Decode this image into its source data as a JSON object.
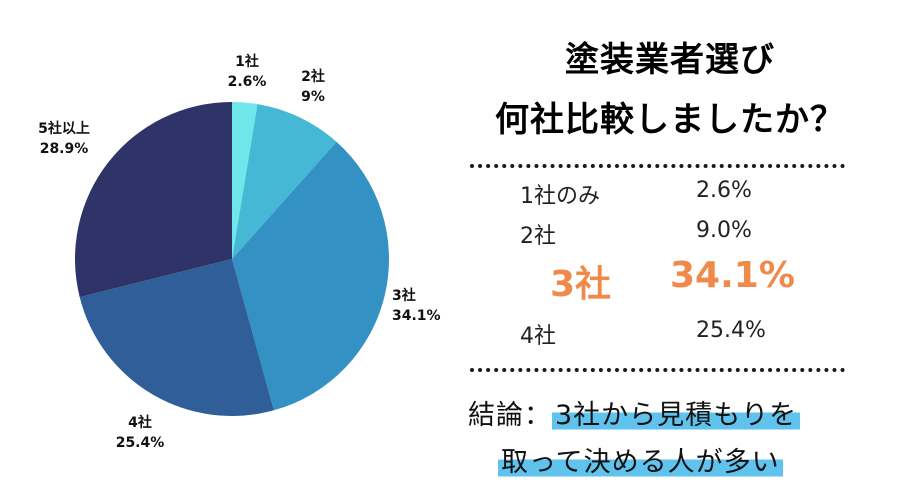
{
  "chart_data": {
    "type": "pie",
    "categories": [
      "1社",
      "2社",
      "3社",
      "4社",
      "5社以上"
    ],
    "values": [
      2.6,
      9.0,
      34.1,
      25.4,
      28.9
    ],
    "slice_labels": [
      {
        "name": "1社",
        "value": "2.6%"
      },
      {
        "name": "2社",
        "value": "9%"
      },
      {
        "name": "3社",
        "value": "34.1%"
      },
      {
        "name": "4社",
        "value": "25.4%"
      },
      {
        "name": "5社以上",
        "value": "28.9%"
      }
    ],
    "colors": [
      "#6ee6ea",
      "#45b8d6",
      "#3391c3",
      "#2f5e98",
      "#2e3468"
    ],
    "start_angle_deg": 0,
    "direction": "clockwise",
    "legend": "none"
  },
  "title": {
    "line1": "塗装業者選び",
    "line2": "何社比較しましたか？"
  },
  "summary": {
    "rows": [
      {
        "name": "1社のみ",
        "pct": "2.6%"
      },
      {
        "name": "2社",
        "pct": "9.0%"
      },
      {
        "name": "3社",
        "pct": "34.1%"
      },
      {
        "name": "4社",
        "pct": "25.4%"
      }
    ],
    "highlight_color": "#f08a4b"
  },
  "conclusion": {
    "prefix": "結論：",
    "line1_marked": "3社から見積もりを",
    "line2_marked": "取って決める人が多い",
    "marker_color": "#5fc3ee"
  }
}
